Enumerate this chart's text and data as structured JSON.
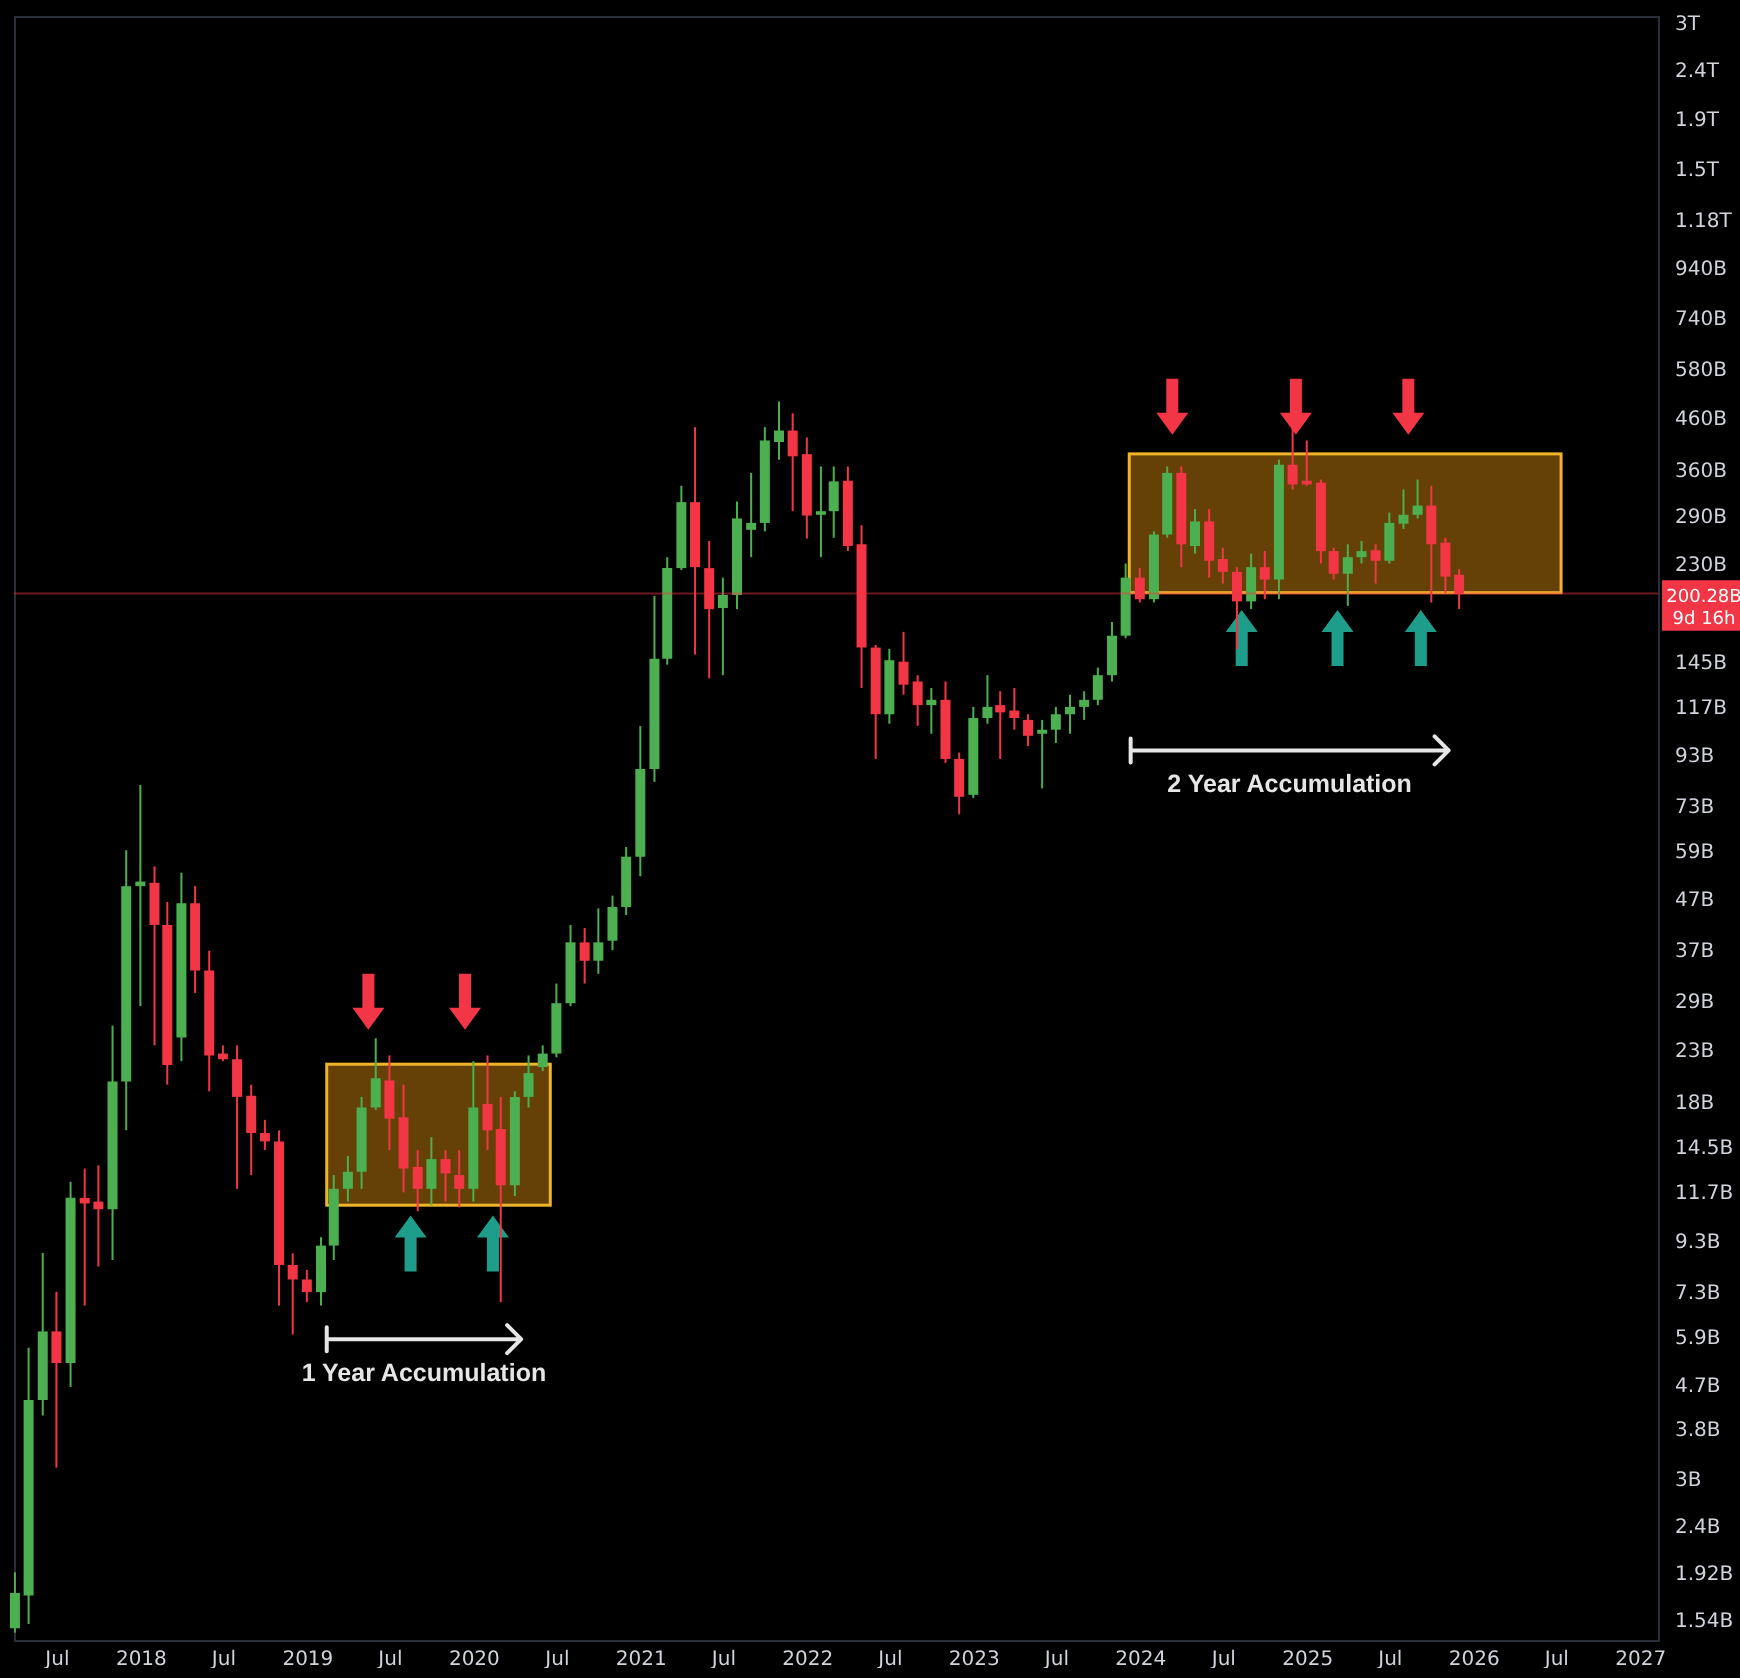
{
  "chart_data": {
    "type": "candlestick",
    "log": true,
    "x": [
      "2017-04",
      "2017-05",
      "2017-06",
      "2017-07",
      "2017-08",
      "2017-09",
      "2017-10",
      "2017-11",
      "2017-12",
      "2018-01",
      "2018-02",
      "2018-03",
      "2018-04",
      "2018-05",
      "2018-06",
      "2018-07",
      "2018-08",
      "2018-09",
      "2018-10",
      "2018-11",
      "2018-12",
      "2019-01",
      "2019-02",
      "2019-03",
      "2019-04",
      "2019-05",
      "2019-06",
      "2019-07",
      "2019-08",
      "2019-09",
      "2019-10",
      "2019-11",
      "2019-12",
      "2020-01",
      "2020-02",
      "2020-03",
      "2020-04",
      "2020-05",
      "2020-06",
      "2020-07",
      "2020-08",
      "2020-09",
      "2020-10",
      "2020-11",
      "2020-12",
      "2021-01",
      "2021-02",
      "2021-03",
      "2021-04",
      "2021-05",
      "2021-06",
      "2021-07",
      "2021-08",
      "2021-09",
      "2021-10",
      "2021-11",
      "2021-12",
      "2022-01",
      "2022-02",
      "2022-03",
      "2022-04",
      "2022-05",
      "2022-06",
      "2022-07",
      "2022-08",
      "2022-09",
      "2022-10",
      "2022-11",
      "2022-12",
      "2023-01",
      "2023-02",
      "2023-03",
      "2023-04",
      "2023-05",
      "2023-06",
      "2023-07",
      "2023-08",
      "2023-09",
      "2023-10",
      "2023-11",
      "2023-12",
      "2024-01",
      "2024-02",
      "2024-03",
      "2024-04",
      "2024-05",
      "2024-06",
      "2024-07",
      "2024-08",
      "2024-09",
      "2024-10",
      "2024-11",
      "2024-12",
      "2025-01",
      "2025-02",
      "2025-03",
      "2025-04",
      "2025-05",
      "2025-06",
      "2025-07",
      "2025-08",
      "2025-09",
      "2025-10",
      "2025-11",
      "2025-12"
    ],
    "ohlc": [
      [
        1480000000.0,
        1930000000.0,
        1450000000.0,
        1750000000.0
      ],
      [
        1730000000.0,
        5600000000.0,
        1510000000.0,
        4370000000.0
      ],
      [
        4370000000.0,
        8780000000.0,
        4060000000.0,
        6050000000.0
      ],
      [
        6050000000.0,
        7300000000.0,
        3170000000.0,
        5210000000.0
      ],
      [
        5210000000.0,
        12300000000.0,
        4650000000.0,
        11400000000.0
      ],
      [
        11400000000.0,
        13100000000.0,
        6840000000.0,
        11100000000.0
      ],
      [
        11200000000.0,
        13300000000.0,
        8230000000.0,
        10800000000.0
      ],
      [
        10800000000.0,
        25800000000.0,
        8490000000.0,
        19800000000.0
      ],
      [
        19800000000.0,
        59300000000.0,
        15700000000.0,
        50000000000.0
      ],
      [
        50000000000.0,
        80800000000.0,
        28300000000.0,
        51100000000.0
      ],
      [
        50800000000.0,
        54900000000.0,
        23500000000.0,
        41600000000.0
      ],
      [
        41600000000.0,
        46400000000.0,
        19500000000.0,
        21400000000.0
      ],
      [
        24400000000.0,
        53300000000.0,
        21800000000.0,
        46100000000.0
      ],
      [
        46100000000.0,
        50000000000.0,
        30100000000.0,
        33500000000.0
      ],
      [
        33500000000.0,
        36800000000.0,
        18900000000.0,
        22400000000.0
      ],
      [
        22600000000.0,
        23500000000.0,
        21800000000.0,
        22000000000.0
      ],
      [
        22000000000.0,
        23500000000.0,
        11900000000.0,
        18400000000.0
      ],
      [
        18500000000.0,
        19500000000.0,
        12700000000.0,
        15500000000.0
      ],
      [
        15500000000.0,
        16500000000.0,
        14300000000.0,
        14900000000.0
      ],
      [
        14900000000.0,
        15700000000.0,
        6840000000.0,
        8290000000.0
      ],
      [
        8290000000.0,
        8760000000.0,
        5960000000.0,
        7740000000.0
      ],
      [
        7740000000.0,
        8100000000.0,
        6950000000.0,
        7290000000.0
      ],
      [
        7290000000.0,
        9460000000.0,
        6840000000.0,
        9090000000.0
      ],
      [
        9090000000.0,
        12700000000.0,
        8490000000.0,
        11900000000.0
      ],
      [
        11900000000.0,
        13900000000.0,
        11200000000.0,
        12900000000.0
      ],
      [
        12900000000.0,
        18400000000.0,
        11900000000.0,
        17500000000.0
      ],
      [
        17500000000.0,
        24300000000.0,
        17300000000.0,
        20100000000.0
      ],
      [
        19900000000.0,
        22400000000.0,
        14300000000.0,
        16600000000.0
      ],
      [
        16700000000.0,
        19500000000.0,
        11700000000.0,
        13100000000.0
      ],
      [
        13200000000.0,
        14300000000.0,
        10700000000.0,
        11900000000.0
      ],
      [
        11900000000.0,
        15200000000.0,
        11000000000.0,
        13700000000.0
      ],
      [
        13700000000.0,
        14300000000.0,
        11200000000.0,
        12800000000.0
      ],
      [
        12700000000.0,
        14300000000.0,
        10900000000.0,
        11900000000.0
      ],
      [
        11900000000.0,
        21800000000.0,
        11200000000.0,
        17500000000.0
      ],
      [
        17800000000.0,
        22400000000.0,
        14300000000.0,
        15700000000.0
      ],
      [
        15800000000.0,
        18400000000.0,
        6950000000.0,
        12100000000.0
      ],
      [
        12100000000.0,
        18900000000.0,
        11500000000.0,
        18400000000.0
      ],
      [
        18400000000.0,
        22400000000.0,
        17500000000.0,
        20600000000.0
      ],
      [
        21200000000.0,
        23500000000.0,
        20800000000.0,
        22600000000.0
      ],
      [
        22600000000.0,
        31500000000.0,
        22200000000.0,
        28700000000.0
      ],
      [
        28700000000.0,
        41600000000.0,
        28300000000.0,
        38300000000.0
      ],
      [
        38300000000.0,
        41000000000.0,
        31500000000.0,
        35100000000.0
      ],
      [
        35100000000.0,
        45000000000.0,
        33000000000.0,
        38300000000.0
      ],
      [
        38600000000.0,
        47800000000.0,
        36900000000.0,
        45300000000.0
      ],
      [
        45300000000.0,
        60200000000.0,
        43600000000.0,
        57500000000.0
      ],
      [
        57500000000.0,
        106800000000.0,
        52400000000.0,
        87200000000.0
      ],
      [
        87200000000.0,
        198000000000.0,
        82000000000.0,
        147000000000.0
      ],
      [
        147000000000.0,
        238000000000.0,
        143000000000.0,
        226000000000.0
      ],
      [
        226000000000.0,
        334000000000.0,
        224000000000.0,
        309000000000.0
      ],
      [
        309000000000.0,
        441000000000.0,
        150000000000.0,
        227000000000.0
      ],
      [
        226000000000.0,
        257000000000.0,
        134000000000.0,
        186000000000.0
      ],
      [
        187000000000.0,
        216000000000.0,
        136000000000.0,
        199000000000.0
      ],
      [
        199000000000.0,
        310000000000.0,
        186000000000.0,
        286000000000.0
      ],
      [
        271000000000.0,
        355000000000.0,
        238000000000.0,
        280000000000.0
      ],
      [
        280000000000.0,
        441000000000.0,
        269000000000.0,
        414000000000.0
      ],
      [
        411000000000.0,
        498000000000.0,
        378000000000.0,
        434000000000.0
      ],
      [
        434000000000.0,
        471000000000.0,
        296000000000.0,
        384000000000.0
      ],
      [
        388000000000.0,
        420000000000.0,
        260000000000.0,
        290000000000.0
      ],
      [
        291000000000.0,
        366000000000.0,
        238000000000.0,
        296000000000.0
      ],
      [
        296000000000.0,
        366000000000.0,
        261000000000.0,
        341000000000.0
      ],
      [
        342000000000.0,
        366000000000.0,
        245000000000.0,
        251000000000.0
      ],
      [
        253000000000.0,
        277000000000.0,
        128000000000.0,
        155000000000.0
      ],
      [
        155000000000.0,
        157000000000.0,
        91400000000.0,
        113000000000.0
      ],
      [
        113000000000.0,
        154000000000.0,
        108000000000.0,
        146000000000.0
      ],
      [
        145000000000.0,
        167000000000.0,
        124000000000.0,
        130000000000.0
      ],
      [
        132000000000.0,
        136000000000.0,
        107000000000.0,
        118000000000.0
      ],
      [
        118000000000.0,
        128000000000.0,
        103000000000.0,
        121000000000.0
      ],
      [
        121000000000.0,
        132000000000.0,
        89700000000.0,
        91400000000.0
      ],
      [
        91400000000.0,
        94200000000.0,
        70300000000.0,
        76400000000.0
      ],
      [
        77100000000.0,
        117000000000.0,
        75900000000.0,
        111000000000.0
      ],
      [
        111000000000.0,
        136000000000.0,
        108000000000.0,
        117000000000.0
      ],
      [
        118000000000.0,
        126000000000.0,
        91400000000.0,
        114000000000.0
      ],
      [
        115000000000.0,
        128000000000.0,
        105000000000.0,
        111000000000.0
      ],
      [
        110000000000.0,
        113000000000.0,
        97200000000.0,
        102000000000.0
      ],
      [
        103000000000.0,
        110000000000.0,
        79500000000.0,
        105000000000.0
      ],
      [
        105000000000.0,
        117000000000.0,
        98600000000.0,
        113000000000.0
      ],
      [
        113000000000.0,
        124000000000.0,
        103000000000.0,
        117000000000.0
      ],
      [
        117000000000.0,
        126000000000.0,
        110000000000.0,
        121000000000.0
      ],
      [
        121000000000.0,
        141000000000.0,
        118000000000.0,
        136000000000.0
      ],
      [
        136000000000.0,
        175000000000.0,
        132000000000.0,
        164000000000.0
      ],
      [
        164000000000.0,
        231000000000.0,
        162000000000.0,
        216000000000.0
      ],
      [
        216000000000.0,
        226000000000.0,
        192000000000.0,
        195000000000.0
      ],
      [
        195000000000.0,
        269000000000.0,
        192000000000.0,
        265000000000.0
      ],
      [
        265000000000.0,
        366000000000.0,
        261000000000.0,
        355000000000.0
      ],
      [
        355000000000.0,
        366000000000.0,
        227000000000.0,
        253000000000.0
      ],
      [
        251000000000.0,
        299000000000.0,
        242000000000.0,
        282000000000.0
      ],
      [
        282000000000.0,
        299000000000.0,
        216000000000.0,
        234000000000.0
      ],
      [
        236000000000.0,
        249000000000.0,
        210000000000.0,
        222000000000.0
      ],
      [
        222000000000.0,
        227000000000.0,
        154000000000.0,
        193000000000.0
      ],
      [
        193000000000.0,
        242000000000.0,
        186000000000.0,
        227000000000.0
      ],
      [
        227000000000.0,
        245000000000.0,
        195000000000.0,
        214000000000.0
      ],
      [
        214000000000.0,
        378000000000.0,
        195000000000.0,
        369000000000.0
      ],
      [
        369000000000.0,
        441000000000.0,
        328000000000.0,
        336000000000.0
      ],
      [
        342000000000.0,
        414000000000.0,
        334000000000.0,
        336000000000.0
      ],
      [
        339000000000.0,
        344000000000.0,
        231000000000.0,
        245000000000.0
      ],
      [
        245000000000.0,
        249000000000.0,
        214000000000.0,
        220000000000.0
      ],
      [
        220000000000.0,
        253000000000.0,
        189000000000.0,
        238000000000.0
      ],
      [
        238000000000.0,
        257000000000.0,
        231000000000.0,
        245000000000.0
      ],
      [
        246000000000.0,
        253000000000.0,
        210000000000.0,
        234000000000.0
      ],
      [
        234000000000.0,
        294000000000.0,
        231000000000.0,
        280000000000.0
      ],
      [
        279000000000.0,
        328000000000.0,
        272000000000.0,
        291000000000.0
      ],
      [
        291000000000.0,
        344000000000.0,
        286000000000.0,
        304000000000.0
      ],
      [
        304000000000.0,
        334000000000.0,
        192000000000.0,
        253000000000.0
      ],
      [
        255000000000.0,
        261000000000.0,
        201000000000.0,
        217000000000.0
      ],
      [
        219000000000.0,
        225000000000.0,
        186000000000.0,
        200280000000.0
      ]
    ],
    "colors": [
      "#4caf50",
      "#4caf50",
      "#4caf50",
      "#f23645",
      "#4caf50",
      "#f23645",
      "#f23645",
      "#4caf50",
      "#4caf50",
      "#4caf50",
      "#f23645",
      "#f23645",
      "#4caf50",
      "#f23645",
      "#f23645",
      "#f23645",
      "#f23645",
      "#f23645",
      "#f23645",
      "#f23645",
      "#f23645",
      "#f23645",
      "#4caf50",
      "#4caf50",
      "#4caf50",
      "#4caf50",
      "#4caf50",
      "#f23645",
      "#f23645",
      "#f23645",
      "#4caf50",
      "#f23645",
      "#f23645",
      "#4caf50",
      "#f23645",
      "#f23645",
      "#4caf50",
      "#4caf50",
      "#4caf50",
      "#4caf50",
      "#4caf50",
      "#f23645",
      "#4caf50",
      "#4caf50",
      "#4caf50",
      "#4caf50",
      "#4caf50",
      "#4caf50",
      "#4caf50",
      "#f23645",
      "#f23645",
      "#4caf50",
      "#4caf50",
      "#4caf50",
      "#4caf50",
      "#4caf50",
      "#f23645",
      "#f23645",
      "#4caf50",
      "#4caf50",
      "#f23645",
      "#f23645",
      "#f23645",
      "#4caf50",
      "#f23645",
      "#f23645",
      "#4caf50",
      "#f23645",
      "#f23645",
      "#4caf50",
      "#4caf50",
      "#f23645",
      "#f23645",
      "#f23645",
      "#4caf50",
      "#4caf50",
      "#4caf50",
      "#4caf50",
      "#4caf50",
      "#4caf50",
      "#4caf50",
      "#f23645",
      "#4caf50",
      "#4caf50",
      "#f23645",
      "#4caf50",
      "#f23645",
      "#f23645",
      "#f23645",
      "#4caf50",
      "#f23645",
      "#4caf50",
      "#f23645",
      "#f23645",
      "#f23645",
      "#f23645",
      "#4caf50",
      "#4caf50",
      "#f23645",
      "#4caf50",
      "#4caf50",
      "#4caf50",
      "#f23645",
      "#f23645",
      "#f23645"
    ],
    "xlim": [
      "2017-03-30",
      "2027-02-10"
    ],
    "xticks": [
      {
        "value": "2017-07",
        "label": "Jul"
      },
      {
        "value": "2018-01",
        "label": "2018"
      },
      {
        "value": "2018-07",
        "label": "Jul"
      },
      {
        "value": "2019-01",
        "label": "2019"
      },
      {
        "value": "2019-07",
        "label": "Jul"
      },
      {
        "value": "2020-01",
        "label": "2020"
      },
      {
        "value": "2020-07",
        "label": "Jul"
      },
      {
        "value": "2021-01",
        "label": "2021"
      },
      {
        "value": "2021-07",
        "label": "Jul"
      },
      {
        "value": "2022-01",
        "label": "2022"
      },
      {
        "value": "2022-07",
        "label": "Jul"
      },
      {
        "value": "2023-01",
        "label": "2023"
      },
      {
        "value": "2023-07",
        "label": "Jul"
      },
      {
        "value": "2024-01",
        "label": "2024"
      },
      {
        "value": "2024-07",
        "label": "Jul"
      },
      {
        "value": "2025-01",
        "label": "2025"
      },
      {
        "value": "2025-07",
        "label": "Jul"
      },
      {
        "value": "2026-01",
        "label": "2026"
      },
      {
        "value": "2026-07",
        "label": "Jul"
      },
      {
        "value": "2027-01",
        "label": "2027"
      }
    ],
    "ylim": [
      1400000000.0,
      3100000000000.0
    ],
    "yticks": [
      {
        "value": 3000000000000.0,
        "label": "3T"
      },
      {
        "value": 2400000000000.0,
        "label": "2.4T"
      },
      {
        "value": 1900000000000.0,
        "label": "1.9T"
      },
      {
        "value": 1500000000000.0,
        "label": "1.5T"
      },
      {
        "value": 1180000000000.0,
        "label": "1.18T"
      },
      {
        "value": 940000000000.0,
        "label": "940B"
      },
      {
        "value": 740000000000.0,
        "label": "740B"
      },
      {
        "value": 580000000000.0,
        "label": "580B"
      },
      {
        "value": 460000000000.0,
        "label": "460B"
      },
      {
        "value": 360000000000.0,
        "label": "360B"
      },
      {
        "value": 290000000000.0,
        "label": "290B"
      },
      {
        "value": 230000000000.0,
        "label": "230B"
      },
      {
        "value": 145000000000.0,
        "label": "145B"
      },
      {
        "value": 117000000000.0,
        "label": "117B"
      },
      {
        "value": 93000000000.0,
        "label": "93B"
      },
      {
        "value": 73000000000.0,
        "label": "73B"
      },
      {
        "value": 59000000000.0,
        "label": "59B"
      },
      {
        "value": 47000000000.0,
        "label": "47B"
      },
      {
        "value": 37000000000.0,
        "label": "37B"
      },
      {
        "value": 29000000000.0,
        "label": "29B"
      },
      {
        "value": 23000000000.0,
        "label": "23B"
      },
      {
        "value": 18000000000.0,
        "label": "18B"
      },
      {
        "value": 14500000000.0,
        "label": "14.5B"
      },
      {
        "value": 11700000000.0,
        "label": "11.7B"
      },
      {
        "value": 9300000000.0,
        "label": "9.3B"
      },
      {
        "value": 7300000000.0,
        "label": "7.3B"
      },
      {
        "value": 5900000000.0,
        "label": "5.9B"
      },
      {
        "value": 4700000000.0,
        "label": "4.7B"
      },
      {
        "value": 3800000000.0,
        "label": "3.8B"
      },
      {
        "value": 3000000000.0,
        "label": "3B"
      },
      {
        "value": 2400000000.0,
        "label": "2.4B"
      },
      {
        "value": 1920000000.0,
        "label": "1.92B"
      },
      {
        "value": 1540000000.0,
        "label": "1.54B"
      }
    ],
    "ref_lines": [
      {
        "axis": "y",
        "value": 200280000000.0,
        "label": "200.28B\n9d 16h",
        "color": "#f23645"
      }
    ],
    "annotations": [
      "1 Year Accumulation",
      "2 Year Accumulation"
    ]
  }
}
